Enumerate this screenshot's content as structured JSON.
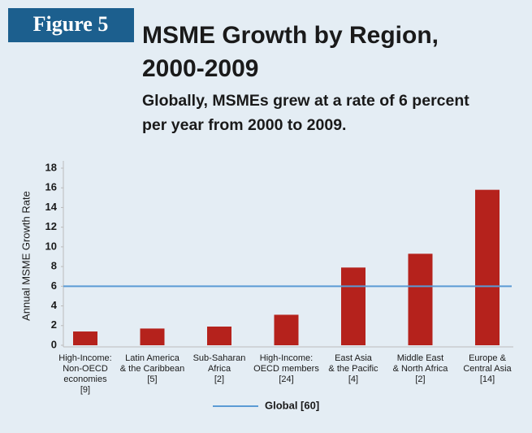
{
  "chart_data": {
    "type": "bar",
    "figure_label": "Figure 5",
    "title": [
      "MSME Growth by Region,",
      "2000-2009"
    ],
    "subtitle": [
      "Globally, MSMEs grew at a rate of 6 percent",
      "per year from 2000 to 2009."
    ],
    "y_label": "Annual MSME Growth Rate",
    "categories": [
      [
        "High-Income:",
        "Non-OECD",
        "economies",
        "[9]"
      ],
      [
        "Latin America",
        "& the Caribbean",
        "[5]"
      ],
      [
        "Sub-Saharan",
        "Africa",
        "[2]"
      ],
      [
        "High-Income:",
        "OECD members",
        "[24]"
      ],
      [
        "East Asia",
        "& the Pacific",
        "[4]"
      ],
      [
        "Middle East",
        "& North Africa",
        "[2]"
      ],
      [
        "Europe &",
        "Central Asia",
        "[14]"
      ]
    ],
    "values": [
      1.4,
      1.7,
      1.9,
      3.1,
      7.9,
      9.3,
      15.8
    ],
    "color": "#b5221c",
    "reference_line": {
      "name": "Global [60]",
      "value": 6,
      "color": "#5b9bd5"
    },
    "ylim": [
      0,
      18
    ],
    "yticks": [
      0,
      2,
      4,
      6,
      8,
      10,
      12,
      14,
      16,
      18
    ],
    "grid": false
  }
}
